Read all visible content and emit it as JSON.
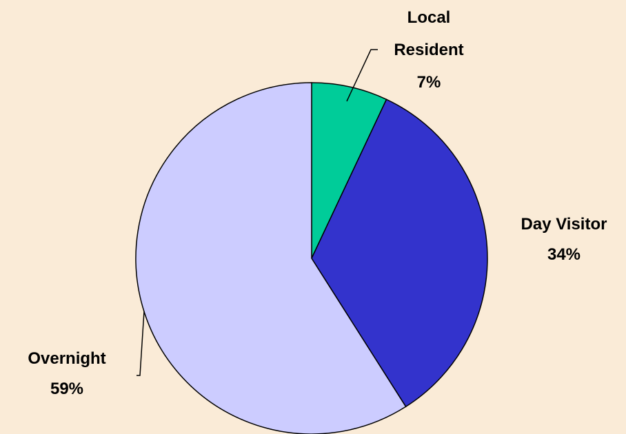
{
  "chart_data": {
    "type": "pie",
    "categories": [
      "Local Resident",
      "Day Visitor",
      "Overnight"
    ],
    "values": [
      7,
      34,
      59
    ],
    "value_labels": [
      "7%",
      "34%",
      "59%"
    ],
    "colors": [
      "#00cc99",
      "#3333cc",
      "#ccccff"
    ]
  }
}
